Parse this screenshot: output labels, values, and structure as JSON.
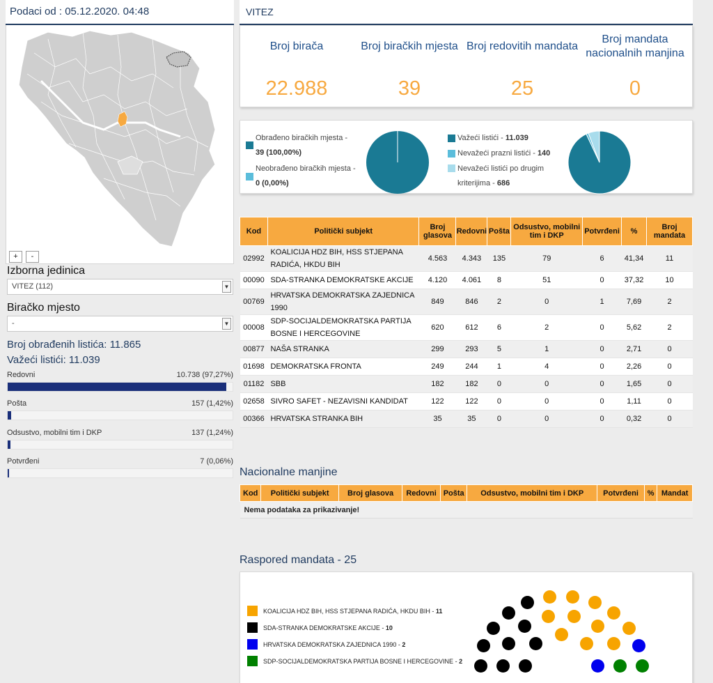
{
  "header": {
    "date_label": "Podaci od : 05.12.2020. 04:48"
  },
  "map": {
    "zoom_in": "+",
    "zoom_out": "-"
  },
  "filters": {
    "unit_label": "Izborna jedinica",
    "unit_value": "VITEZ (112)",
    "station_label": "Biračko mjesto",
    "station_value": "-"
  },
  "summary": {
    "processed": "Broj obrađenih listića: 11.865",
    "valid": "Važeći listići: 11.039"
  },
  "breakdown": [
    {
      "name": "Redovni",
      "value": "10.738 (97,27%)",
      "fraction": 0.9727
    },
    {
      "name": "Pošta",
      "value": "157 (1,42%)",
      "fraction": 0.0142
    },
    {
      "name": "Odsustvo, mobilni tim i DKP",
      "value": "137 (1,24%)",
      "fraction": 0.0124
    },
    {
      "name": "Potvrđeni",
      "value": "7 (0,06%)",
      "fraction": 0.0006
    }
  ],
  "unit_title": "VITEZ",
  "kpis": [
    {
      "title": "Broj birača",
      "value": "22.988"
    },
    {
      "title": "Broj biračkih mjesta",
      "value": "39"
    },
    {
      "title": "Broj redovitih mandata",
      "value": "25"
    },
    {
      "title": "Broj mandata nacionalnih manjina",
      "value": "0"
    }
  ],
  "stations_legend": [
    {
      "label": "Obrađeno biračkih mjesta -",
      "value": "39 (100,00%)",
      "color": "#1a7a94",
      "fraction": 1.0
    },
    {
      "label": "Neobrađeno biračkih mjesta -",
      "value": "0 (0,00%)",
      "color": "#5bbddb",
      "fraction": 0.0
    }
  ],
  "ballots_legend": [
    {
      "label": "Važeći listići -",
      "value": "11.039",
      "color": "#1a7a94",
      "count": 11039
    },
    {
      "label": "Nevažeći prazni listići -",
      "value": "140",
      "color": "#5bbddb",
      "count": 140
    },
    {
      "label": "Nevažeći listići po drugim kriterijima -",
      "value": "686",
      "color": "#a8dcec",
      "count": 686
    }
  ],
  "results_table": {
    "headers": [
      "Kod",
      "Politički subjekt",
      "Broj glasova",
      "Redovni",
      "Pošta",
      "Odsustvo, mobilni tim i DKP",
      "Potvrđeni",
      "%",
      "Broj mandata"
    ],
    "rows": [
      [
        "02992",
        "KOALICIJA HDZ BIH, HSS STJEPANA RADIĆA, HKDU BIH",
        "4.563",
        "4.343",
        "135",
        "79",
        "6",
        "41,34",
        "11"
      ],
      [
        "00090",
        "SDA-STRANKA DEMOKRATSKE AKCIJE",
        "4.120",
        "4.061",
        "8",
        "51",
        "0",
        "37,32",
        "10"
      ],
      [
        "00769",
        "HRVATSKA DEMOKRATSKA ZAJEDNICA 1990",
        "849",
        "846",
        "2",
        "0",
        "1",
        "7,69",
        "2"
      ],
      [
        "00008",
        "SDP-SOCIJALDEMOKRATSKA PARTIJA BOSNE I HERCEGOVINE",
        "620",
        "612",
        "6",
        "2",
        "0",
        "5,62",
        "2"
      ],
      [
        "00877",
        "NAŠA STRANKA",
        "299",
        "293",
        "5",
        "1",
        "0",
        "2,71",
        "0"
      ],
      [
        "01698",
        "DEMOKRATSKA FRONTA",
        "249",
        "244",
        "1",
        "4",
        "0",
        "2,26",
        "0"
      ],
      [
        "01182",
        "SBB",
        "182",
        "182",
        "0",
        "0",
        "0",
        "1,65",
        "0"
      ],
      [
        "02658",
        "SIVRO SAFET - NEZAVISNI KANDIDAT",
        "122",
        "122",
        "0",
        "0",
        "0",
        "1,11",
        "0"
      ],
      [
        "00366",
        "HRVATSKA STRANKA BIH",
        "35",
        "35",
        "0",
        "0",
        "0",
        "0,32",
        "0"
      ]
    ]
  },
  "minorities": {
    "title": "Nacionalne manjine",
    "headers": [
      "Kod",
      "Politički subjekt",
      "Broj glasova",
      "Redovni",
      "Pošta",
      "Odsustvo, mobilni tim i DKP",
      "Potvrđeni",
      "%",
      "Mandat"
    ],
    "empty": "Nema podataka za prikazivanje!"
  },
  "seats": {
    "title": "Raspored mandata - 25",
    "parties": [
      {
        "name": "KOALICIJA HDZ BIH, HSS STJEPANA RADIĆA, HKDU BIH - ",
        "count": "11",
        "color": "#f7a400"
      },
      {
        "name": "SDA-STRANKA DEMOKRATSKE AKCIJE - ",
        "count": "10",
        "color": "#000000"
      },
      {
        "name": "HRVATSKA DEMOKRATSKA ZAJEDNICA 1990 - ",
        "count": "2",
        "color": "#0000ee"
      },
      {
        "name": "SDP-SOCIJALDEMOKRATSKA PARTIJA BOSNE I HERCEGOVINE - ",
        "count": "2",
        "color": "#008000"
      }
    ],
    "layout": [
      "k",
      "k",
      "k",
      "k",
      "k",
      "k",
      "k",
      "k",
      "k",
      "k",
      "o",
      "o",
      "o",
      "o",
      "o",
      "o",
      "o",
      "o",
      "o",
      "o",
      "o",
      "b",
      "b",
      "g",
      "g"
    ]
  }
}
